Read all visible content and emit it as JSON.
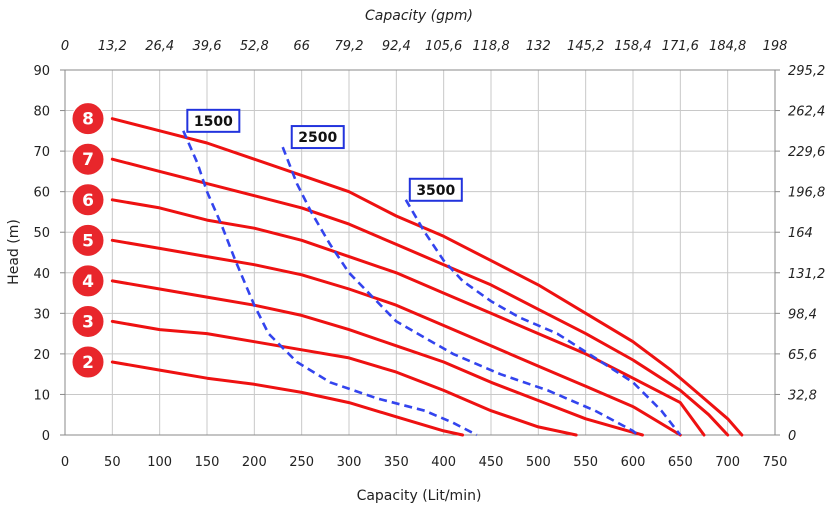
{
  "chart_data": {
    "type": "line",
    "xlabel": "Capacity (Lit/min)",
    "ylabel": "Head (m)",
    "x2label": "Capacity (gpm)",
    "xlim": [
      0,
      750
    ],
    "ylim": [
      0,
      90
    ],
    "x_ticks": [
      "0",
      "50",
      "100",
      "150",
      "200",
      "250",
      "300",
      "350",
      "400",
      "450",
      "500",
      "550",
      "600",
      "650",
      "700",
      "750"
    ],
    "y_ticks": [
      "0",
      "10",
      "20",
      "30",
      "40",
      "50",
      "60",
      "70",
      "80",
      "90"
    ],
    "x2_ticks": [
      "0",
      "13,2",
      "26,4",
      "39,6",
      "52,8",
      "66",
      "79,2",
      "92,4",
      "105,6",
      "118,8",
      "132",
      "145,2",
      "158,4",
      "171,6",
      "184,8",
      "198"
    ],
    "y2_ticks": [
      "0",
      "32,8",
      "65,6",
      "98,4",
      "131,2",
      "164",
      "196,8",
      "229,6",
      "262,4",
      "295,2"
    ],
    "grid": true,
    "series": [
      {
        "name": "2",
        "style": "solid",
        "points": [
          [
            50,
            18
          ],
          [
            100,
            16
          ],
          [
            150,
            14
          ],
          [
            200,
            12.5
          ],
          [
            250,
            10.5
          ],
          [
            300,
            8
          ],
          [
            350,
            4.5
          ],
          [
            400,
            1
          ],
          [
            420,
            0
          ]
        ]
      },
      {
        "name": "3",
        "style": "solid",
        "points": [
          [
            50,
            28
          ],
          [
            100,
            26
          ],
          [
            150,
            25
          ],
          [
            200,
            23
          ],
          [
            250,
            21
          ],
          [
            300,
            19
          ],
          [
            350,
            15.5
          ],
          [
            400,
            11
          ],
          [
            450,
            6
          ],
          [
            500,
            2
          ],
          [
            540,
            0
          ]
        ]
      },
      {
        "name": "4",
        "style": "solid",
        "points": [
          [
            50,
            38
          ],
          [
            100,
            36
          ],
          [
            150,
            34
          ],
          [
            200,
            32
          ],
          [
            250,
            29.5
          ],
          [
            300,
            26
          ],
          [
            350,
            22
          ],
          [
            400,
            18
          ],
          [
            450,
            13
          ],
          [
            500,
            8.5
          ],
          [
            550,
            4
          ],
          [
            610,
            0
          ]
        ]
      },
      {
        "name": "5",
        "style": "solid",
        "points": [
          [
            50,
            48
          ],
          [
            100,
            46
          ],
          [
            150,
            44
          ],
          [
            200,
            42
          ],
          [
            250,
            39.5
          ],
          [
            300,
            36
          ],
          [
            350,
            32
          ],
          [
            400,
            27
          ],
          [
            450,
            22
          ],
          [
            500,
            17
          ],
          [
            550,
            12
          ],
          [
            600,
            7
          ],
          [
            650,
            0
          ]
        ]
      },
      {
        "name": "6",
        "style": "solid",
        "points": [
          [
            50,
            58
          ],
          [
            100,
            56
          ],
          [
            150,
            53
          ],
          [
            200,
            51
          ],
          [
            250,
            48
          ],
          [
            300,
            44
          ],
          [
            350,
            40
          ],
          [
            400,
            35
          ],
          [
            450,
            30
          ],
          [
            500,
            25
          ],
          [
            550,
            20
          ],
          [
            600,
            14
          ],
          [
            650,
            8
          ],
          [
            675,
            0
          ]
        ]
      },
      {
        "name": "7",
        "style": "solid",
        "points": [
          [
            50,
            68
          ],
          [
            100,
            65
          ],
          [
            150,
            62
          ],
          [
            200,
            59
          ],
          [
            250,
            56
          ],
          [
            300,
            52
          ],
          [
            350,
            47
          ],
          [
            400,
            42
          ],
          [
            450,
            37
          ],
          [
            500,
            31
          ],
          [
            550,
            25
          ],
          [
            600,
            18.5
          ],
          [
            650,
            11
          ],
          [
            680,
            5
          ],
          [
            700,
            0
          ]
        ]
      },
      {
        "name": "8",
        "style": "solid",
        "points": [
          [
            50,
            78
          ],
          [
            100,
            75
          ],
          [
            150,
            72
          ],
          [
            200,
            68
          ],
          [
            250,
            64
          ],
          [
            300,
            60
          ],
          [
            350,
            54
          ],
          [
            400,
            49
          ],
          [
            450,
            43
          ],
          [
            500,
            37
          ],
          [
            550,
            30
          ],
          [
            600,
            23
          ],
          [
            640,
            16
          ],
          [
            670,
            10
          ],
          [
            700,
            4
          ],
          [
            715,
            0
          ]
        ]
      },
      {
        "name": "1500",
        "style": "dashed",
        "points": [
          [
            125,
            75
          ],
          [
            140,
            67
          ],
          [
            150,
            60
          ],
          [
            165,
            52
          ],
          [
            180,
            43
          ],
          [
            200,
            32
          ],
          [
            215,
            25
          ],
          [
            245,
            18
          ],
          [
            280,
            13
          ],
          [
            330,
            9
          ],
          [
            380,
            6
          ],
          [
            410,
            3
          ],
          [
            435,
            0
          ]
        ]
      },
      {
        "name": "2500",
        "style": "dashed",
        "points": [
          [
            230,
            71
          ],
          [
            245,
            62
          ],
          [
            260,
            55
          ],
          [
            280,
            47
          ],
          [
            300,
            40
          ],
          [
            325,
            34
          ],
          [
            350,
            28
          ],
          [
            380,
            24
          ],
          [
            410,
            20
          ],
          [
            460,
            15
          ],
          [
            510,
            11
          ],
          [
            560,
            6
          ],
          [
            600,
            1
          ],
          [
            605,
            0
          ]
        ]
      },
      {
        "name": "3500",
        "style": "dashed",
        "points": [
          [
            360,
            58
          ],
          [
            380,
            50
          ],
          [
            400,
            43
          ],
          [
            420,
            38
          ],
          [
            450,
            33
          ],
          [
            480,
            29
          ],
          [
            520,
            25
          ],
          [
            560,
            19
          ],
          [
            600,
            13
          ],
          [
            630,
            6
          ],
          [
            650,
            0
          ]
        ]
      }
    ],
    "rpm_labels": [
      "1500",
      "2500",
      "3500"
    ],
    "badges": [
      "2",
      "3",
      "4",
      "5",
      "6",
      "7",
      "8"
    ]
  }
}
